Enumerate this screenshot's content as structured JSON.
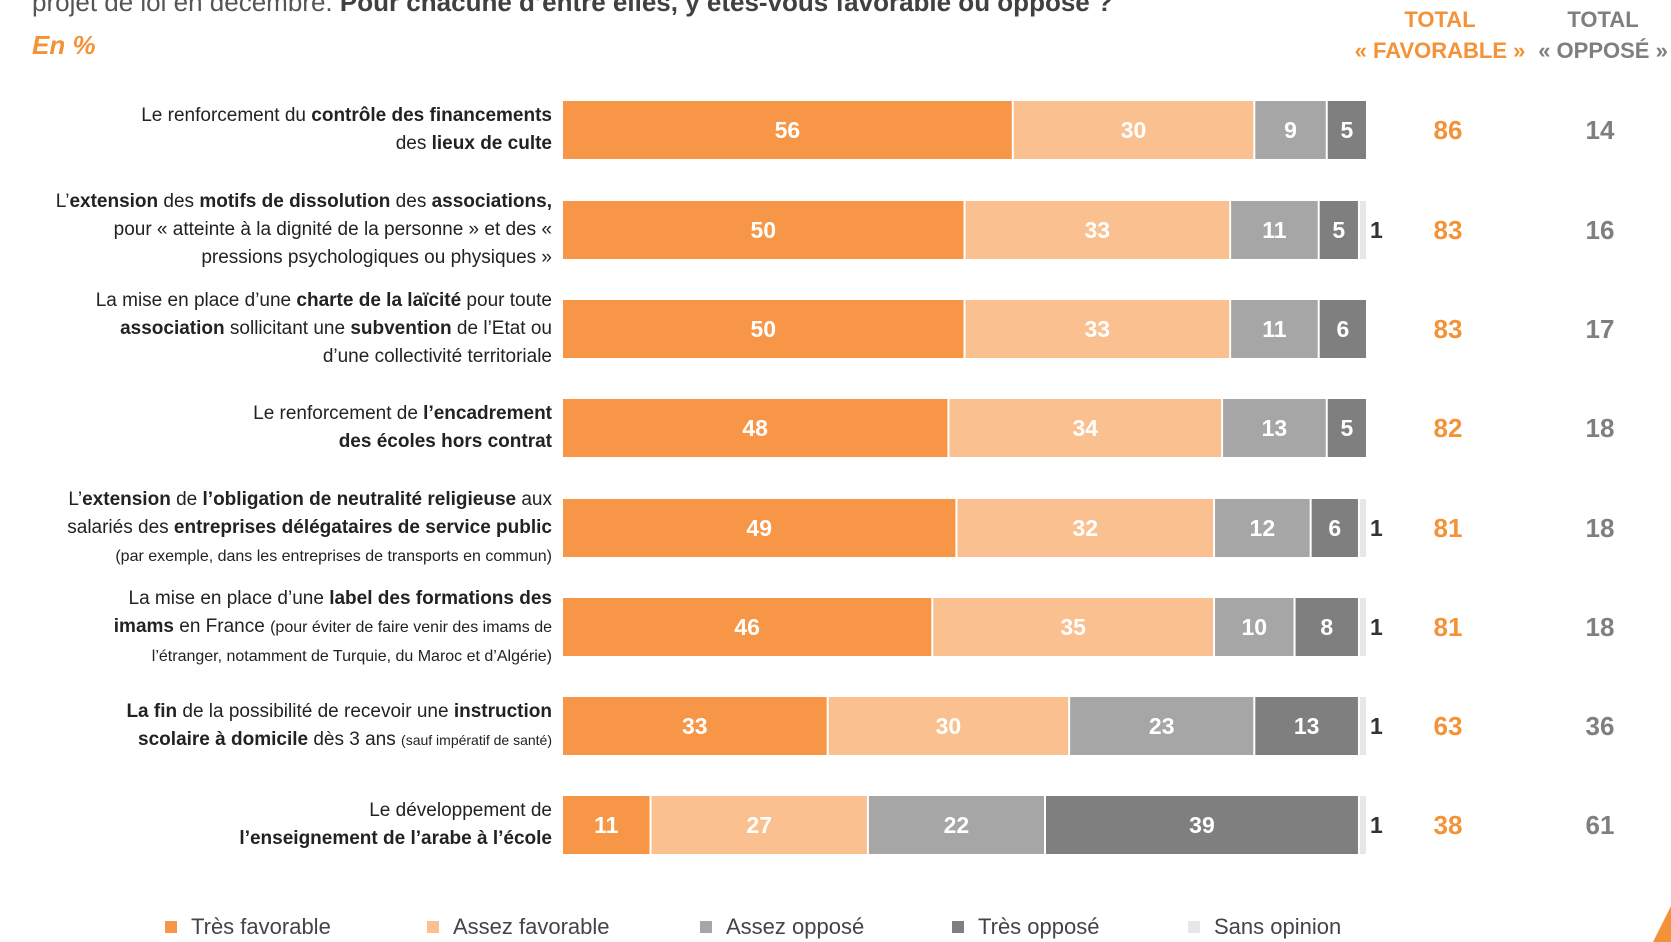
{
  "header": {
    "question_start": "projet de loi en décembre. ",
    "question_bold": "Pour chacune d’entre elles, y êtes-vous favorable ou opposé ?",
    "unit": "En %"
  },
  "totals_header": {
    "favorable_line1": "TOTAL",
    "favorable_line2": "« FAVORABLE »",
    "oppose_line1": "TOTAL",
    "oppose_line2": "« OPPOSÉ »"
  },
  "colors": {
    "tres_favorable": "#F79646",
    "assez_favorable": "#FAC090",
    "assez_oppose": "#A6A6A6",
    "tres_oppose": "#7F7F7F",
    "sans_opinion": "#E7E7E7",
    "total_favorable": "#F39237",
    "total_oppose": "#7F7F7F"
  },
  "legend": [
    {
      "label": "Très favorable",
      "color": "#F79646"
    },
    {
      "label": "Assez favorable",
      "color": "#FAC090"
    },
    {
      "label": "Assez opposé",
      "color": "#A6A6A6"
    },
    {
      "label": "Très opposé",
      "color": "#7F7F7F"
    },
    {
      "label": "Sans opinion",
      "color": "#E7E7E7"
    }
  ],
  "rows": [
    {
      "label_parts": [
        [
          "n",
          "Le renforcement du "
        ],
        [
          "b",
          "contrôle des financements"
        ],
        [
          "br",
          ""
        ],
        [
          "n",
          "des "
        ],
        [
          "b",
          "lieux de culte"
        ]
      ]
    },
    {
      "label_parts": [
        [
          "n",
          "L’"
        ],
        [
          "b",
          "extension"
        ],
        [
          "n",
          " des "
        ],
        [
          "b",
          "motifs de dissolution"
        ],
        [
          "n",
          " des "
        ],
        [
          "b",
          "associations,"
        ],
        [
          "br",
          ""
        ],
        [
          "n",
          "pour « atteinte à la dignité de la personne » et des «"
        ],
        [
          "br",
          ""
        ],
        [
          "n",
          "pressions psychologiques ou physiques »"
        ]
      ]
    },
    {
      "label_parts": [
        [
          "n",
          "La mise en place d’une "
        ],
        [
          "b",
          "charte de la laïcité"
        ],
        [
          "n",
          " pour toute"
        ],
        [
          "br",
          ""
        ],
        [
          "b",
          "association"
        ],
        [
          "n",
          " sollicitant une "
        ],
        [
          "b",
          "subvention"
        ],
        [
          "n",
          " de l’Etat ou"
        ],
        [
          "br",
          ""
        ],
        [
          "n",
          "d’une collectivité territoriale"
        ]
      ]
    },
    {
      "label_parts": [
        [
          "n",
          "Le renforcement de "
        ],
        [
          "b",
          "l’encadrement"
        ],
        [
          "br",
          ""
        ],
        [
          "b",
          "des écoles hors contrat"
        ]
      ]
    },
    {
      "label_parts": [
        [
          "n",
          "L’"
        ],
        [
          "b",
          "extension"
        ],
        [
          "n",
          " de "
        ],
        [
          "b",
          "l’obligation de neutralité religieuse"
        ],
        [
          "n",
          " aux"
        ],
        [
          "br",
          ""
        ],
        [
          "n",
          "salariés des "
        ],
        [
          "b",
          "entreprises délégataires de service public"
        ],
        [
          "br",
          ""
        ],
        [
          "s",
          "(par exemple, dans les entreprises de transports en commun)"
        ]
      ]
    },
    {
      "label_parts": [
        [
          "n",
          "La mise en place d’une "
        ],
        [
          "b",
          "label des formations des"
        ],
        [
          "br",
          ""
        ],
        [
          "b",
          "imams"
        ],
        [
          "n",
          " en France "
        ],
        [
          "s",
          "(pour éviter de faire venir des imams de"
        ],
        [
          "br",
          ""
        ],
        [
          "s",
          "l’étranger, notamment de Turquie, du Maroc et d’Algérie)"
        ]
      ]
    },
    {
      "label_parts": [
        [
          "b",
          "La fin"
        ],
        [
          "n",
          " de la possibilité de recevoir une "
        ],
        [
          "b",
          "instruction"
        ],
        [
          "br",
          ""
        ],
        [
          "b",
          "scolaire à domicile"
        ],
        [
          "n",
          " dès 3 ans "
        ],
        [
          "t",
          "(sauf impératif de santé)"
        ]
      ]
    },
    {
      "label_parts": [
        [
          "n",
          "Le développement de"
        ],
        [
          "br",
          ""
        ],
        [
          "b",
          "l’enseignement de l’arabe à l’école"
        ]
      ]
    }
  ],
  "chart_data": {
    "type": "bar",
    "orientation": "horizontal-stacked",
    "unit": "En %",
    "xlim": [
      0,
      100
    ],
    "categories": [
      "Le renforcement du contrôle des financements des lieux de culte",
      "L’extension des motifs de dissolution des associations, pour « atteinte à la dignité de la personne » et des « pressions psychologiques ou physiques »",
      "La mise en place d’une charte de la laïcité pour toute association sollicitant une subvention de l’Etat ou d’une collectivité territoriale",
      "Le renforcement de l’encadrement des écoles hors contrat",
      "L’extension de l’obligation de neutralité religieuse aux salariés des entreprises délégataires de service public (par exemple, dans les entreprises de transports en commun)",
      "La mise en place d’une label des formations des imams en France (pour éviter de faire venir des imams de l’étranger, notamment de Turquie, du Maroc et d’Algérie)",
      "La fin de la possibilité de recevoir une instruction scolaire à domicile dès 3 ans (sauf impératif de santé)",
      "Le développement de l’enseignement de l’arabe à l’école"
    ],
    "series": [
      {
        "name": "Très favorable",
        "values": [
          56,
          50,
          50,
          48,
          49,
          46,
          33,
          11
        ]
      },
      {
        "name": "Assez favorable",
        "values": [
          30,
          33,
          33,
          34,
          32,
          35,
          30,
          27
        ]
      },
      {
        "name": "Assez opposé",
        "values": [
          9,
          11,
          11,
          13,
          12,
          10,
          23,
          22
        ]
      },
      {
        "name": "Très opposé",
        "values": [
          5,
          5,
          6,
          5,
          6,
          8,
          13,
          39
        ]
      },
      {
        "name": "Sans opinion",
        "values": [
          null,
          1,
          null,
          null,
          1,
          1,
          1,
          1
        ]
      }
    ],
    "total_favorable": [
      86,
      83,
      83,
      82,
      81,
      81,
      63,
      38
    ],
    "total_oppose": [
      14,
      16,
      17,
      18,
      18,
      18,
      36,
      61
    ],
    "legend_position": "bottom"
  }
}
